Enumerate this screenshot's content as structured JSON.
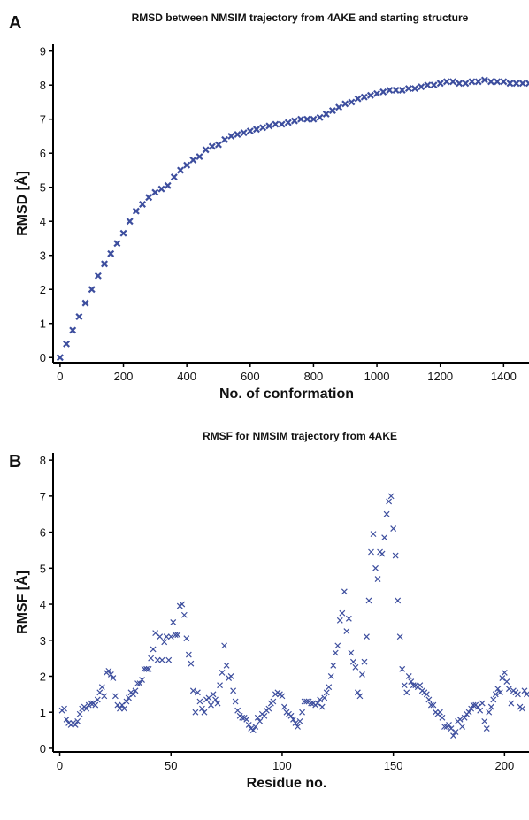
{
  "chart_data": [
    {
      "type": "scatter",
      "panel_label": "A",
      "title": "RMSD between NMSIM trajectory from 4AKE and starting structure",
      "xlabel": "No. of conformation",
      "ylabel": "RMSD [Å]",
      "x": [
        0,
        20,
        40,
        60,
        80,
        100,
        120,
        140,
        160,
        180,
        200,
        220,
        240,
        260,
        280,
        300,
        320,
        340,
        360,
        380,
        400,
        420,
        440,
        460,
        480,
        500,
        520,
        540,
        560,
        580,
        600,
        620,
        640,
        660,
        680,
        700,
        720,
        740,
        760,
        780,
        800,
        820,
        840,
        860,
        880,
        900,
        920,
        940,
        960,
        980,
        1000,
        1020,
        1040,
        1060,
        1080,
        1100,
        1120,
        1140,
        1160,
        1180,
        1200,
        1220,
        1240,
        1260,
        1280,
        1300,
        1320,
        1340,
        1360,
        1380,
        1400,
        1420,
        1440,
        1460,
        1480
      ],
      "values": [
        0,
        0.4,
        0.8,
        1.2,
        1.6,
        2.0,
        2.4,
        2.75,
        3.05,
        3.35,
        3.65,
        4.0,
        4.3,
        4.5,
        4.7,
        4.85,
        4.95,
        5.05,
        5.3,
        5.5,
        5.65,
        5.8,
        5.9,
        6.1,
        6.2,
        6.25,
        6.4,
        6.5,
        6.55,
        6.6,
        6.65,
        6.7,
        6.75,
        6.8,
        6.85,
        6.85,
        6.9,
        6.95,
        7.0,
        7.0,
        7.0,
        7.05,
        7.15,
        7.25,
        7.35,
        7.45,
        7.5,
        7.6,
        7.65,
        7.7,
        7.75,
        7.8,
        7.85,
        7.85,
        7.85,
        7.9,
        7.9,
        7.95,
        8.0,
        8.0,
        8.05,
        8.1,
        8.1,
        8.05,
        8.05,
        8.1,
        8.1,
        8.15,
        8.1,
        8.1,
        8.1,
        8.05,
        8.05,
        8.05,
        8.05
      ],
      "color": "#3d4e9e",
      "xlim": [
        -22,
        1480
      ],
      "ylim": [
        -0.15,
        9.2
      ],
      "xticks": [
        0,
        200,
        400,
        600,
        800,
        1000,
        1200,
        1400
      ],
      "yticks": [
        0,
        1,
        2,
        3,
        4,
        5,
        6,
        7,
        8,
        9
      ],
      "grid": false
    },
    {
      "type": "scatter",
      "panel_label": "B",
      "title": "RMSF for NMSIM trajectory from 4AKE",
      "xlabel": "Residue no.",
      "ylabel": "RMSF [Å]",
      "x": [
        1,
        2,
        3,
        4,
        5,
        6,
        7,
        8,
        9,
        10,
        11,
        12,
        13,
        14,
        15,
        16,
        17,
        18,
        19,
        20,
        21,
        22,
        23,
        24,
        25,
        26,
        27,
        28,
        29,
        30,
        31,
        32,
        33,
        34,
        35,
        36,
        37,
        38,
        39,
        40,
        41,
        42,
        43,
        44,
        45,
        46,
        47,
        48,
        49,
        50,
        51,
        52,
        53,
        54,
        55,
        56,
        57,
        58,
        59,
        60,
        61,
        62,
        63,
        64,
        65,
        66,
        67,
        68,
        69,
        70,
        71,
        72,
        73,
        74,
        75,
        76,
        77,
        78,
        79,
        80,
        81,
        82,
        83,
        84,
        85,
        86,
        87,
        88,
        89,
        90,
        91,
        92,
        93,
        94,
        95,
        96,
        97,
        98,
        99,
        100,
        101,
        102,
        103,
        104,
        105,
        106,
        107,
        108,
        109,
        110,
        111,
        112,
        113,
        114,
        115,
        116,
        117,
        118,
        119,
        120,
        121,
        122,
        123,
        124,
        125,
        126,
        127,
        128,
        129,
        130,
        131,
        132,
        133,
        134,
        135,
        136,
        137,
        138,
        139,
        140,
        141,
        142,
        143,
        144,
        145,
        146,
        147,
        148,
        149,
        150,
        151,
        152,
        153,
        154,
        155,
        156,
        157,
        158,
        159,
        160,
        161,
        162,
        163,
        164,
        165,
        166,
        167,
        168,
        169,
        170,
        171,
        172,
        173,
        174,
        175,
        176,
        177,
        178,
        179,
        180,
        181,
        182,
        183,
        184,
        185,
        186,
        187,
        188,
        189,
        190,
        191,
        192,
        193,
        194,
        195,
        196,
        197,
        198,
        199,
        200,
        201,
        202,
        203,
        204,
        205,
        206,
        207,
        208,
        209,
        210
      ],
      "values": [
        1.05,
        1.1,
        0.8,
        0.7,
        0.65,
        0.7,
        0.65,
        0.75,
        0.95,
        1.1,
        1.15,
        1.1,
        1.2,
        1.25,
        1.25,
        1.2,
        1.35,
        1.55,
        1.7,
        1.45,
        2.1,
        2.15,
        2.05,
        1.95,
        1.45,
        1.2,
        1.1,
        1.2,
        1.1,
        1.3,
        1.4,
        1.55,
        1.5,
        1.6,
        1.8,
        1.8,
        1.9,
        2.2,
        2.2,
        2.2,
        2.5,
        2.75,
        3.2,
        2.45,
        3.1,
        2.45,
        2.95,
        3.1,
        2.45,
        3.1,
        3.5,
        3.15,
        3.15,
        3.95,
        4.0,
        3.7,
        3.05,
        2.6,
        2.35,
        1.6,
        1.0,
        1.55,
        1.3,
        1.1,
        1.0,
        1.35,
        1.4,
        1.2,
        1.5,
        1.35,
        1.25,
        1.75,
        2.1,
        2.85,
        2.3,
        1.95,
        2.0,
        1.6,
        1.3,
        1.05,
        0.9,
        0.85,
        0.85,
        0.8,
        0.65,
        0.55,
        0.5,
        0.6,
        0.85,
        0.75,
        0.95,
        0.9,
        1.05,
        1.1,
        1.25,
        1.3,
        1.5,
        1.55,
        1.5,
        1.45,
        1.15,
        1.0,
        0.95,
        0.9,
        0.8,
        0.7,
        0.6,
        0.75,
        1.0,
        1.3,
        1.3,
        1.3,
        1.25,
        1.25,
        1.2,
        1.25,
        1.35,
        1.15,
        1.4,
        1.55,
        1.7,
        2.0,
        2.3,
        2.65,
        2.85,
        3.55,
        3.75,
        4.35,
        3.25,
        3.6,
        2.65,
        2.4,
        2.25,
        1.55,
        1.45,
        2.05,
        2.4,
        3.1,
        4.1,
        5.45,
        5.95,
        5.0,
        4.7,
        5.45,
        5.4,
        5.85,
        6.5,
        6.85,
        7.0,
        6.1,
        5.35,
        4.1,
        3.1,
        2.2,
        1.75,
        1.55,
        2.0,
        1.85,
        1.75,
        1.75,
        1.7,
        1.75,
        1.6,
        1.55,
        1.5,
        1.35,
        1.2,
        1.2,
        1.0,
        0.95,
        1.0,
        0.85,
        0.6,
        0.6,
        0.65,
        0.55,
        0.35,
        0.45,
        0.75,
        0.8,
        0.6,
        0.85,
        0.95,
        1.0,
        1.1,
        1.2,
        1.2,
        1.15,
        1.05,
        1.25,
        0.75,
        0.55,
        1.0,
        1.15,
        1.35,
        1.5,
        1.65,
        1.55,
        1.95,
        2.1,
        1.85,
        1.65,
        1.25,
        1.6,
        1.55,
        1.5,
        1.15,
        1.1,
        1.6,
        1.5
      ],
      "color": "#3d4e9e",
      "xlim": [
        -3,
        211
      ],
      "ylim": [
        -0.1,
        8.2
      ],
      "xticks": [
        0,
        50,
        100,
        150,
        200
      ],
      "yticks": [
        0,
        1,
        2,
        3,
        4,
        5,
        6,
        7,
        8
      ],
      "grid": false
    }
  ]
}
